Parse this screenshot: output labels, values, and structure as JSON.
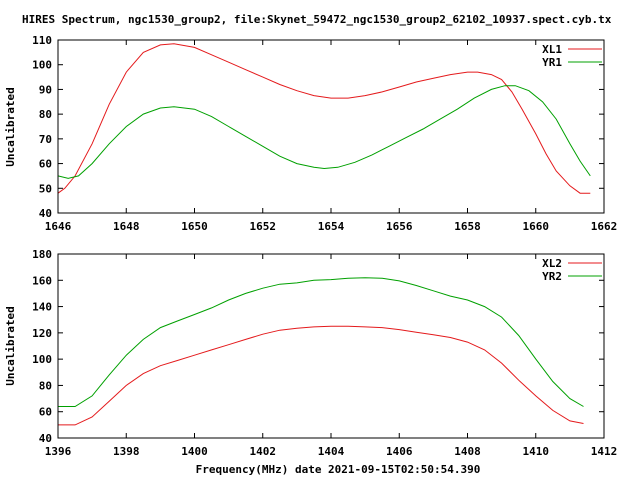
{
  "header": {
    "title": "HIRES Spectrum, ngc1530_group2, file:Skynet_59472_ngc1530_group2_62102_10937.spect.cyb.tx"
  },
  "footer": {
    "xlabel": "Frequency(MHz) date 2021-09-15T02:50:54.390"
  },
  "chart_data": [
    {
      "type": "line",
      "ylabel": "Uncalibrated",
      "xlim": [
        1646,
        1662
      ],
      "ylim": [
        40,
        110
      ],
      "xticks": [
        1646,
        1648,
        1650,
        1652,
        1654,
        1656,
        1658,
        1660,
        1662
      ],
      "yticks": [
        40,
        50,
        60,
        70,
        80,
        90,
        100,
        110
      ],
      "legend_position": "top-right",
      "series": [
        {
          "name": "XL1",
          "color": "#e41a1c",
          "x": [
            1646.0,
            1646.2,
            1646.5,
            1647.0,
            1647.5,
            1648.0,
            1648.5,
            1649.0,
            1649.4,
            1650.0,
            1650.5,
            1651.0,
            1651.5,
            1652.0,
            1652.5,
            1653.0,
            1653.5,
            1654.0,
            1654.5,
            1655.0,
            1655.5,
            1656.0,
            1656.5,
            1657.0,
            1657.5,
            1658.0,
            1658.3,
            1658.7,
            1659.0,
            1659.3,
            1659.6,
            1660.0,
            1660.3,
            1660.6,
            1661.0,
            1661.3,
            1661.6
          ],
          "y": [
            48,
            50,
            55,
            68,
            84,
            97,
            105,
            108,
            108.5,
            107,
            104,
            101,
            98,
            95,
            92,
            89.5,
            87.5,
            86.5,
            86.5,
            87.5,
            89,
            91,
            93,
            94.5,
            96,
            97,
            97,
            96,
            94,
            89,
            82,
            72,
            64,
            57,
            51,
            48,
            48
          ]
        },
        {
          "name": "YR1",
          "color": "#00a000",
          "x": [
            1646.0,
            1646.3,
            1646.6,
            1647.0,
            1647.5,
            1648.0,
            1648.5,
            1649.0,
            1649.4,
            1650.0,
            1650.5,
            1651.0,
            1651.5,
            1652.0,
            1652.5,
            1653.0,
            1653.5,
            1653.8,
            1654.2,
            1654.7,
            1655.2,
            1655.7,
            1656.2,
            1656.7,
            1657.2,
            1657.7,
            1658.2,
            1658.7,
            1659.1,
            1659.4,
            1659.8,
            1660.2,
            1660.6,
            1661.0,
            1661.3,
            1661.6
          ],
          "y": [
            55,
            54,
            55,
            60,
            68,
            75,
            80,
            82.5,
            83,
            82,
            79,
            75,
            71,
            67,
            63,
            60,
            58.5,
            58,
            58.5,
            60.5,
            63.5,
            67,
            70.5,
            74,
            78,
            82,
            86.5,
            90,
            91.5,
            91.5,
            89.5,
            85,
            78,
            68,
            61,
            55
          ]
        }
      ]
    },
    {
      "type": "line",
      "ylabel": "Uncalibrated",
      "xlim": [
        1396,
        1412
      ],
      "ylim": [
        40,
        180
      ],
      "xticks": [
        1396,
        1398,
        1400,
        1402,
        1404,
        1406,
        1408,
        1410,
        1412
      ],
      "yticks": [
        40,
        60,
        80,
        100,
        120,
        140,
        160,
        180
      ],
      "legend_position": "top-right",
      "series": [
        {
          "name": "XL2",
          "color": "#e41a1c",
          "x": [
            1396.0,
            1396.5,
            1397.0,
            1397.5,
            1398.0,
            1398.5,
            1399.0,
            1399.5,
            1400.0,
            1400.5,
            1401.0,
            1401.5,
            1402.0,
            1402.5,
            1403.0,
            1403.5,
            1404.0,
            1404.5,
            1405.0,
            1405.5,
            1406.0,
            1406.5,
            1407.0,
            1407.5,
            1408.0,
            1408.5,
            1409.0,
            1409.5,
            1410.0,
            1410.5,
            1411.0,
            1411.4
          ],
          "y": [
            50,
            50,
            56,
            68,
            80,
            89,
            95,
            99,
            103,
            107,
            111,
            115,
            119,
            122,
            123.5,
            124.5,
            125,
            125,
            124.5,
            124,
            122.5,
            120.5,
            118.5,
            116.5,
            113,
            107,
            97,
            84,
            72,
            61,
            53,
            51
          ]
        },
        {
          "name": "YR2",
          "color": "#00a000",
          "x": [
            1396.0,
            1396.5,
            1397.0,
            1397.5,
            1398.0,
            1398.5,
            1399.0,
            1399.5,
            1400.0,
            1400.5,
            1401.0,
            1401.5,
            1402.0,
            1402.5,
            1403.0,
            1403.5,
            1404.0,
            1404.5,
            1405.0,
            1405.5,
            1406.0,
            1406.5,
            1407.0,
            1407.5,
            1408.0,
            1408.5,
            1409.0,
            1409.5,
            1410.0,
            1410.5,
            1411.0,
            1411.4
          ],
          "y": [
            64,
            64,
            72,
            88,
            103,
            115,
            124,
            129,
            134,
            139,
            145,
            150,
            154,
            157,
            158,
            160,
            160.5,
            161.5,
            162,
            161.5,
            159.5,
            156,
            152,
            148,
            145,
            140,
            132,
            118,
            100,
            83,
            70,
            64
          ]
        }
      ]
    }
  ]
}
